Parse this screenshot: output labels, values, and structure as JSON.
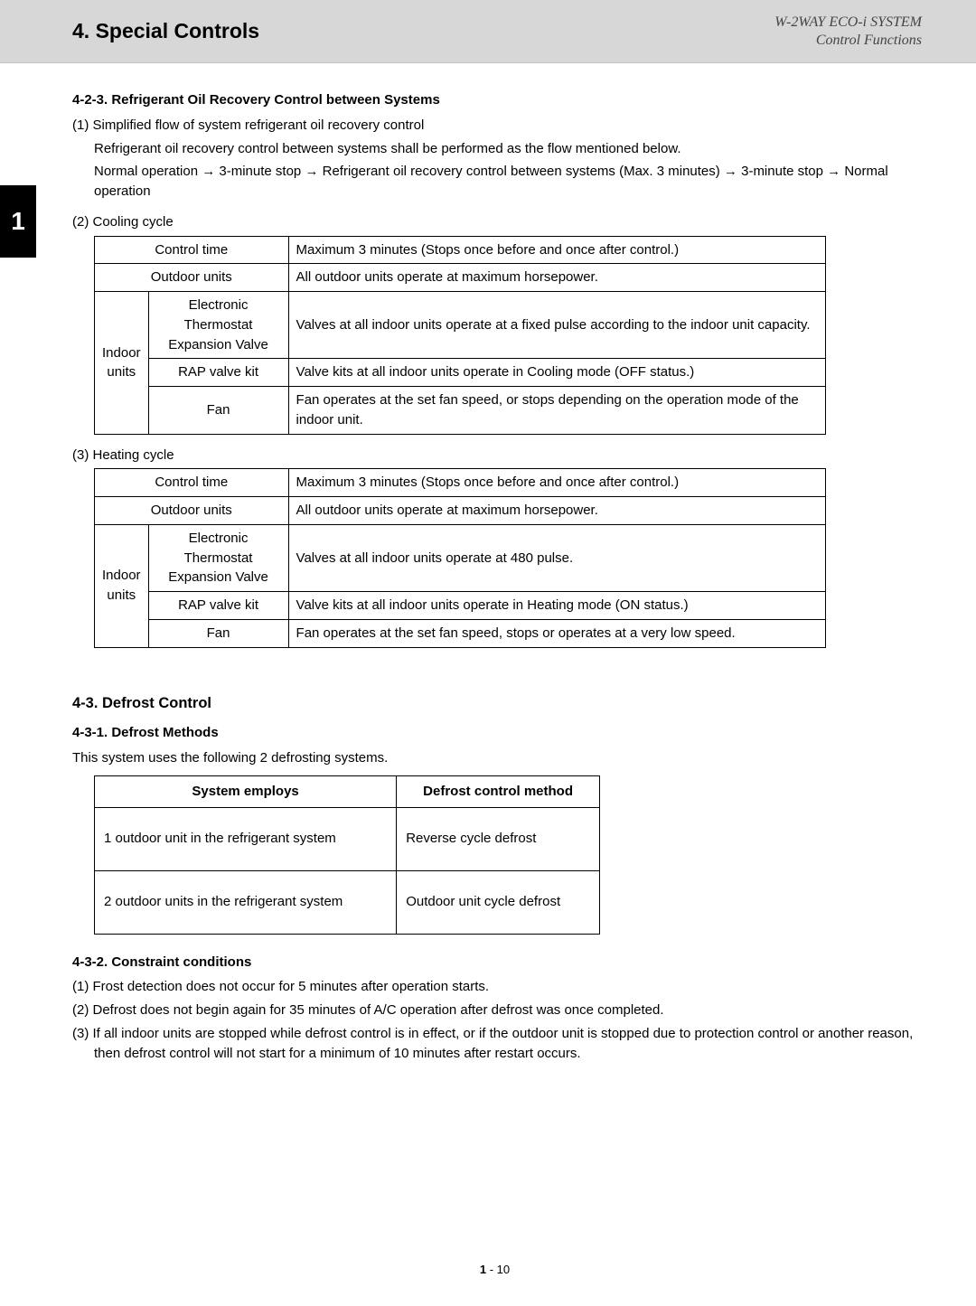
{
  "header": {
    "chapter": "4. Special Controls",
    "doc_system": "W-2WAY ECO-i SYSTEM",
    "doc_subtitle": "Control Functions"
  },
  "tab": "1",
  "sec423": {
    "title": "4-2-3. Refrigerant Oil Recovery Control between Systems",
    "p1_lead": "(1) Simplified flow of system refrigerant oil recovery control",
    "p1_a": "Refrigerant oil recovery control between systems shall be performed as the flow mentioned below.",
    "p1_b": "Normal operation → 3-minute stop → Refrigerant oil recovery control between systems  (Max. 3 minutes) → 3-minute stop → Normal operation",
    "p2_lead": "(2) Cooling cycle",
    "p3_lead": "(3) Heating cycle"
  },
  "cooling_table": {
    "row1_label": "Control time",
    "row1_val": "Maximum 3 minutes (Stops once before and once after control.)",
    "row2_label": "Outdoor units",
    "row2_val": "All outdoor units operate at maximum horsepower.",
    "rowspan_label": "Indoor units",
    "r3_sub": "Electronic Thermostat Expansion Valve",
    "r3_val": "Valves at all indoor units operate at a fixed pulse according to the indoor unit capacity.",
    "r4_sub": "RAP valve kit",
    "r4_val": "Valve kits at all indoor units operate in Cooling mode (OFF status.)",
    "r5_sub": "Fan",
    "r5_val": "Fan operates at the set fan speed, or stops depending on the operation mode of the indoor unit."
  },
  "heating_table": {
    "row1_label": "Control time",
    "row1_val": "Maximum 3 minutes (Stops once before and once after control.)",
    "row2_label": "Outdoor units",
    "row2_val": "All outdoor units operate at maximum horsepower.",
    "rowspan_label": "Indoor units",
    "r3_sub": "Electronic Thermostat Expansion Valve",
    "r3_val": "Valves at all indoor units operate at 480 pulse.",
    "r4_sub": "RAP valve kit",
    "r4_val": "Valve kits at all indoor units operate in Heating mode (ON status.)",
    "r5_sub": "Fan",
    "r5_val": "Fan operates at the set fan speed, stops or operates at a very low speed."
  },
  "sec43": {
    "title": "4-3.  Defrost Control",
    "sub1_title": "4-3-1.  Defrost Methods",
    "sub1_intro": "This system uses the following 2 defrosting systems.",
    "sub2_title": "4-3-2. Constraint conditions",
    "c1": "(1)  Frost detection does not occur for 5 minutes after operation starts.",
    "c2": "(2)  Defrost does not begin again for 35 minutes of A/C operation after defrost was once completed.",
    "c3": "(3)  If all indoor units are stopped while defrost control is in effect, or if the outdoor unit is stopped due to protection control or another reason, then defrost control will not start for a minimum of 10 minutes after restart occurs."
  },
  "defrost_table": {
    "h1": "System employs",
    "h2": "Defrost control method",
    "r1c1": "1 outdoor unit in the refrigerant system",
    "r1c2": "Reverse cycle defrost",
    "r2c1": "2 outdoor units in the refrigerant system",
    "r2c2": "Outdoor unit cycle defrost"
  },
  "page_number": {
    "chapter": "1",
    "sep": " - ",
    "page": "10"
  }
}
